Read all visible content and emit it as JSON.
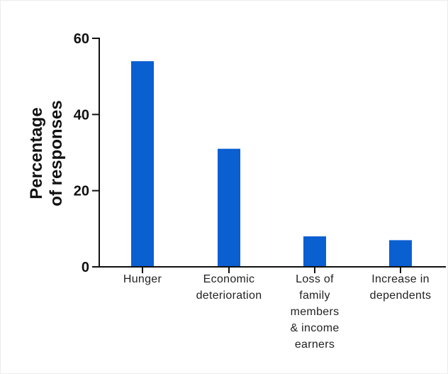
{
  "chart_data": {
    "type": "bar",
    "title": "",
    "ylabel": "Percentage\nof responses",
    "xlabel": "",
    "categories": [
      "Hunger",
      "Economic\ndeterioration",
      "Loss of\nfamily\nmembers\n& income\nearners",
      "Increase in\ndependents"
    ],
    "values": [
      54,
      31,
      8,
      7
    ],
    "ylim": [
      0,
      60
    ],
    "yticks": [
      0,
      20,
      40,
      60
    ],
    "bar_color": "#0a5fd1",
    "grid": false,
    "legend": "none"
  }
}
